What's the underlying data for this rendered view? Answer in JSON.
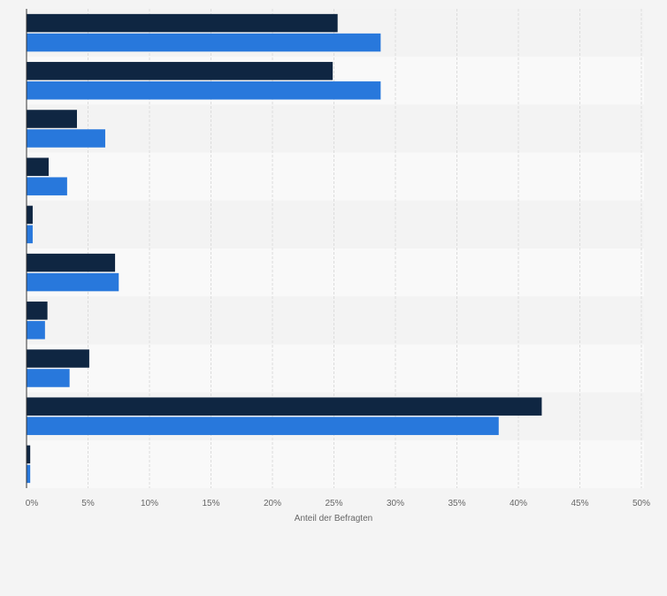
{
  "chart_data": {
    "type": "bar",
    "orientation": "horizontal",
    "title": "",
    "xlabel": "Anteil der Befragten",
    "ylabel": "",
    "xlim": [
      0,
      50
    ],
    "tick_values": [
      0,
      5,
      10,
      15,
      20,
      25,
      30,
      35,
      40,
      45,
      50
    ],
    "tick_labels": [
      "0%",
      "5%",
      "10%",
      "15%",
      "20%",
      "25%",
      "30%",
      "35%",
      "40%",
      "45%",
      "50%"
    ],
    "grid": true,
    "legend": "none",
    "categories": [
      "",
      "",
      "",
      "",
      "",
      "",
      "",
      "",
      "",
      ""
    ],
    "series": [
      {
        "name": "",
        "color": "#0f2642",
        "values": [
          25.3,
          24.9,
          4.1,
          1.8,
          0.5,
          7.2,
          1.7,
          5.1,
          41.9,
          0.3
        ]
      },
      {
        "name": "",
        "color": "#2878dc",
        "values": [
          28.8,
          28.8,
          6.4,
          3.3,
          0.5,
          7.5,
          1.5,
          3.5,
          38.4,
          0.3
        ]
      }
    ],
    "colors": {
      "background": "#f4f4f4",
      "band_light": "#f9f9f9",
      "band_dark": "#f3f3f3",
      "grid": "#dcdcdc",
      "axis": "#333333",
      "text": "#666666"
    }
  }
}
